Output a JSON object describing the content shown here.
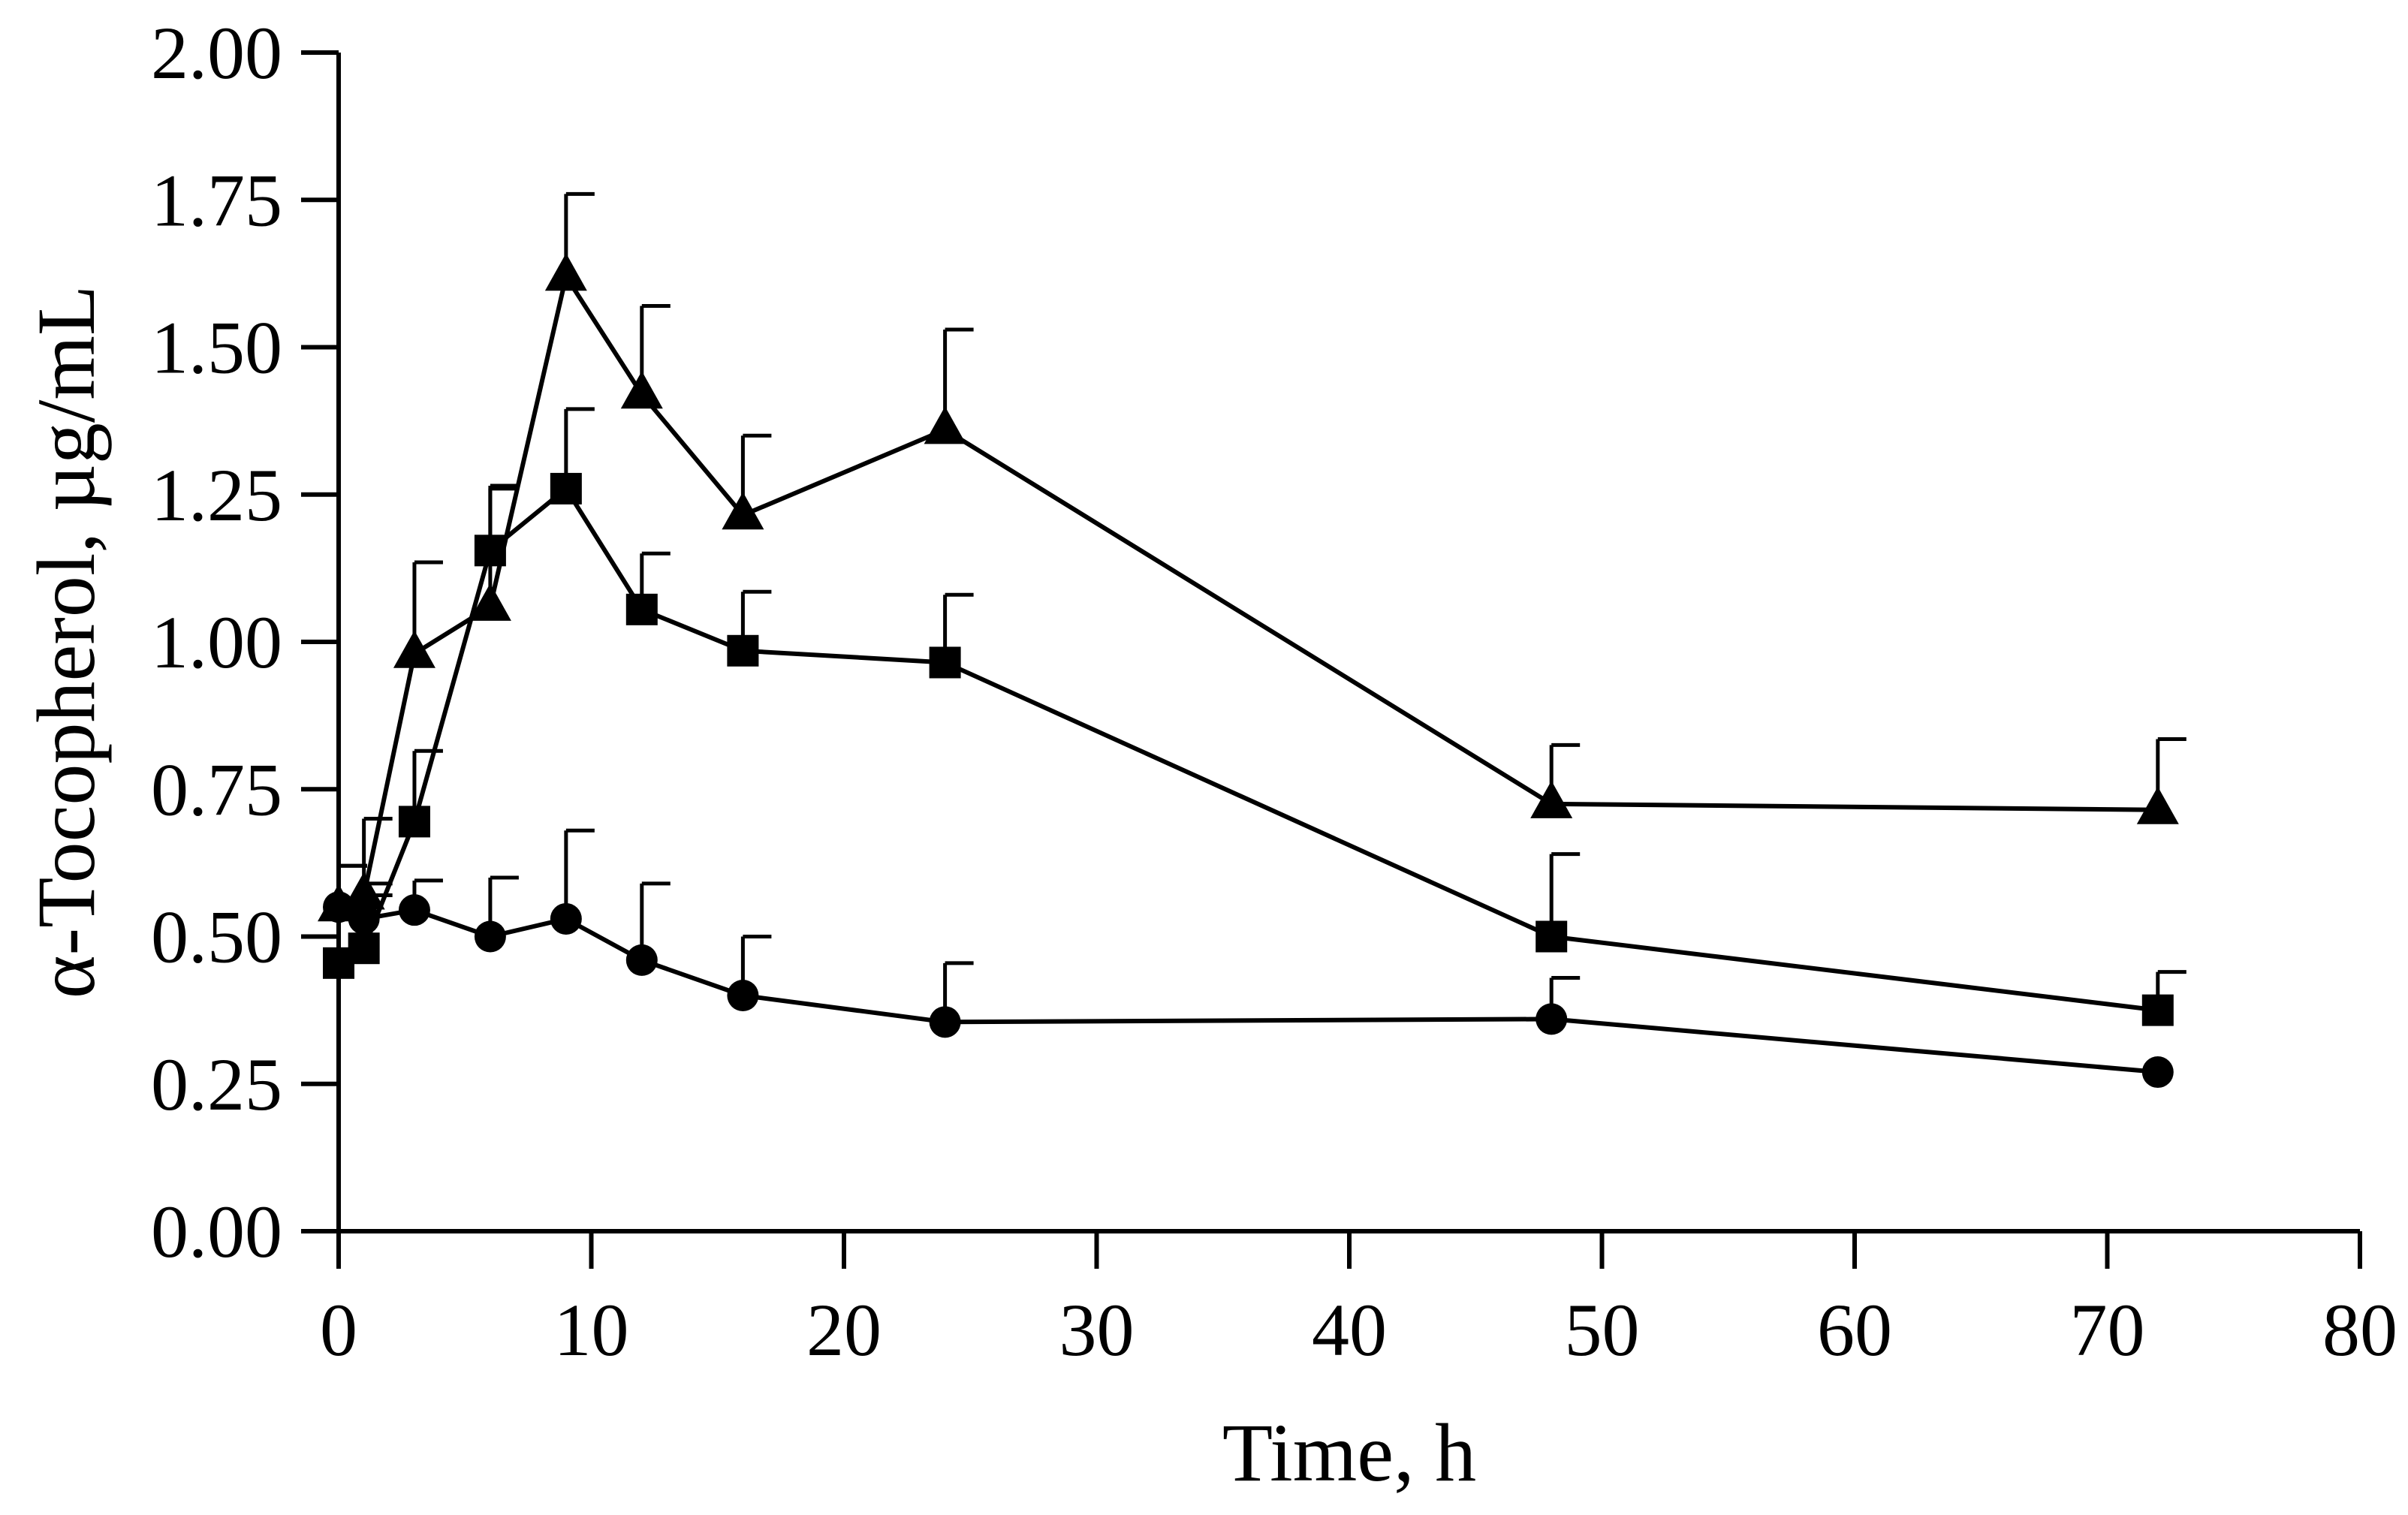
{
  "chart_data": {
    "type": "line",
    "title": "",
    "xlabel": "Time, h",
    "ylabel": "α-Tocopherol, µg/mL",
    "xlim": [
      0,
      80
    ],
    "ylim": [
      0,
      2.0
    ],
    "x_ticks": [
      0,
      10,
      20,
      30,
      40,
      50,
      60,
      70,
      80
    ],
    "y_ticks": [
      0.0,
      0.25,
      0.5,
      0.75,
      1.0,
      1.25,
      1.5,
      1.75,
      2.0
    ],
    "x_tick_labels": [
      "0",
      "10",
      "20",
      "30",
      "40",
      "50",
      "60",
      "70",
      "80"
    ],
    "y_tick_labels": [
      "0.00",
      "0.25",
      "0.50",
      "0.75",
      "1.00",
      "1.25",
      "1.50",
      "1.75",
      "2.00"
    ],
    "grid": false,
    "legend": "none",
    "series": [
      {
        "name": "circle",
        "marker": "circle",
        "x": [
          0,
          1,
          3,
          6,
          9,
          12,
          16,
          24,
          48,
          72
        ],
        "y": [
          0.55,
          0.53,
          0.545,
          0.5,
          0.53,
          0.46,
          0.4,
          0.355,
          0.36,
          0.27
        ],
        "error": [
          0.07,
          0.06,
          0.05,
          0.1,
          0.15,
          0.13,
          0.1,
          0.1,
          0.07,
          0.0
        ]
      },
      {
        "name": "square",
        "marker": "square",
        "x": [
          0,
          1,
          3,
          6,
          9,
          12,
          16,
          24,
          48,
          72
        ],
        "y": [
          0.455,
          0.48,
          0.695,
          1.155,
          1.26,
          1.055,
          0.985,
          0.965,
          0.5,
          0.375
        ],
        "error": [
          0.1,
          0.09,
          0.12,
          0.11,
          0.135,
          0.095,
          0.1,
          0.115,
          0.14,
          0.065
        ]
      },
      {
        "name": "triangle",
        "marker": "triangle",
        "x": [
          0,
          1,
          3,
          6,
          9,
          12,
          16,
          24,
          48,
          72
        ],
        "y": [
          0.55,
          0.57,
          0.98,
          1.06,
          1.62,
          1.42,
          1.215,
          1.36,
          0.725,
          0.715
        ],
        "error": [
          0.07,
          0.13,
          0.155,
          0.2,
          0.14,
          0.15,
          0.135,
          0.17,
          0.1,
          0.12
        ]
      }
    ]
  }
}
